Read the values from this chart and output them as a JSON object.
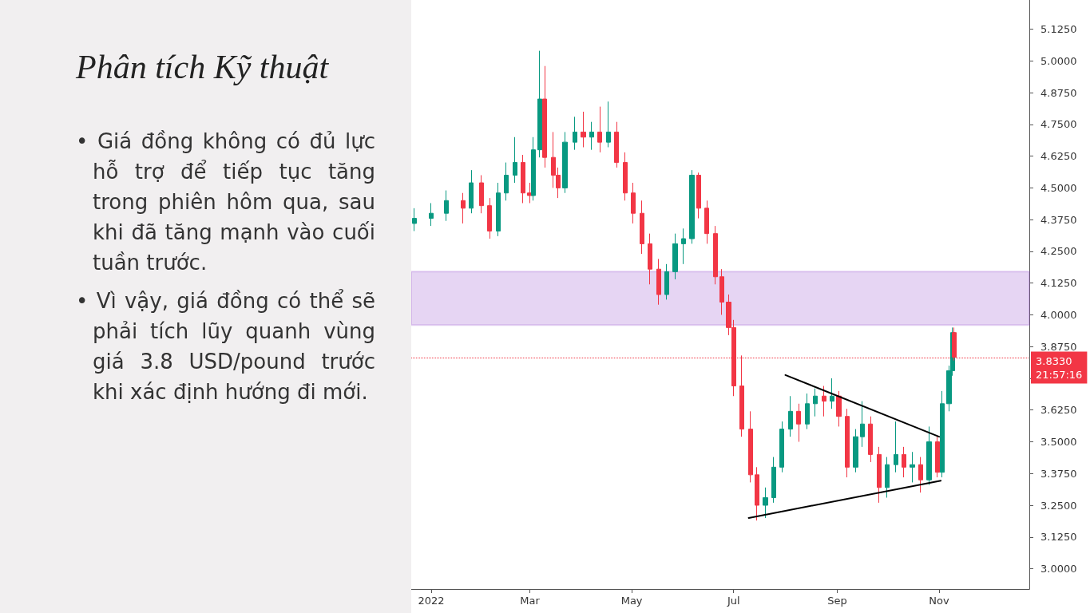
{
  "chart_data": {
    "type": "candlestick",
    "title": "Phân tích Kỹ thuật",
    "annotations": [
      "• Giá đồng không có đủ lực hỗ trợ để tiếp tục tăng trong phiên hôm qua, sau khi đã tăng mạnh vào cuối tuần trước.",
      "• Vì vậy, giá đồng có thể sẽ phải tích lũy quanh vùng giá 3.8 USD/pound trước khi xác định hướng đi mới."
    ],
    "x": [
      "2021-12-22",
      "2022-01-01",
      "2022-01-10",
      "2022-01-20",
      "2022-01-25",
      "2022-01-31",
      "2022-02-05",
      "2022-02-10",
      "2022-02-15",
      "2022-02-20",
      "2022-02-25",
      "2022-03-01",
      "2022-03-03",
      "2022-03-07",
      "2022-03-10",
      "2022-03-15",
      "2022-03-18",
      "2022-03-22",
      "2022-03-28",
      "2022-04-02",
      "2022-04-07",
      "2022-04-12",
      "2022-04-17",
      "2022-04-22",
      "2022-04-27",
      "2022-05-02",
      "2022-05-07",
      "2022-05-12",
      "2022-05-17",
      "2022-05-22",
      "2022-05-27",
      "2022-06-01",
      "2022-06-06",
      "2022-06-10",
      "2022-06-15",
      "2022-06-20",
      "2022-06-24",
      "2022-06-28",
      "2022-07-01",
      "2022-07-06",
      "2022-07-11",
      "2022-07-15",
      "2022-07-20",
      "2022-07-25",
      "2022-07-30",
      "2022-08-04",
      "2022-08-09",
      "2022-08-14",
      "2022-08-19",
      "2022-08-24",
      "2022-08-29",
      "2022-09-02",
      "2022-09-07",
      "2022-09-12",
      "2022-09-16",
      "2022-09-21",
      "2022-09-26",
      "2022-10-01",
      "2022-10-06",
      "2022-10-11",
      "2022-10-16",
      "2022-10-21",
      "2022-10-26",
      "2022-10-31",
      "2022-11-03",
      "2022-11-07",
      "2022-11-09",
      "2022-11-10"
    ],
    "ohlc": [
      [
        4.36,
        4.42,
        4.33,
        4.38
      ],
      [
        4.38,
        4.44,
        4.35,
        4.4
      ],
      [
        4.4,
        4.49,
        4.37,
        4.45
      ],
      [
        4.45,
        4.48,
        4.36,
        4.42
      ],
      [
        4.42,
        4.57,
        4.4,
        4.52
      ],
      [
        4.52,
        4.55,
        4.4,
        4.43
      ],
      [
        4.43,
        4.46,
        4.3,
        4.33
      ],
      [
        4.33,
        4.52,
        4.31,
        4.48
      ],
      [
        4.48,
        4.6,
        4.45,
        4.55
      ],
      [
        4.55,
        4.7,
        4.52,
        4.6
      ],
      [
        4.6,
        4.63,
        4.44,
        4.48
      ],
      [
        4.48,
        4.52,
        4.44,
        4.47
      ],
      [
        4.47,
        4.7,
        4.45,
        4.65
      ],
      [
        4.65,
        5.04,
        4.62,
        4.85
      ],
      [
        4.85,
        4.98,
        4.58,
        4.62
      ],
      [
        4.62,
        4.72,
        4.5,
        4.55
      ],
      [
        4.55,
        4.58,
        4.46,
        4.5
      ],
      [
        4.5,
        4.72,
        4.48,
        4.68
      ],
      [
        4.68,
        4.78,
        4.65,
        4.72
      ],
      [
        4.72,
        4.8,
        4.66,
        4.7
      ],
      [
        4.7,
        4.76,
        4.65,
        4.72
      ],
      [
        4.72,
        4.82,
        4.64,
        4.68
      ],
      [
        4.68,
        4.84,
        4.66,
        4.72
      ],
      [
        4.72,
        4.76,
        4.58,
        4.6
      ],
      [
        4.6,
        4.64,
        4.45,
        4.48
      ],
      [
        4.48,
        4.52,
        4.36,
        4.4
      ],
      [
        4.4,
        4.45,
        4.24,
        4.28
      ],
      [
        4.28,
        4.32,
        4.12,
        4.18
      ],
      [
        4.18,
        4.22,
        4.04,
        4.08
      ],
      [
        4.08,
        4.2,
        4.06,
        4.17
      ],
      [
        4.17,
        4.32,
        4.14,
        4.28
      ],
      [
        4.28,
        4.34,
        4.2,
        4.3
      ],
      [
        4.3,
        4.57,
        4.28,
        4.55
      ],
      [
        4.55,
        4.56,
        4.38,
        4.42
      ],
      [
        4.42,
        4.45,
        4.28,
        4.32
      ],
      [
        4.32,
        4.35,
        4.12,
        4.15
      ],
      [
        4.15,
        4.18,
        4.0,
        4.05
      ],
      [
        4.05,
        4.08,
        3.92,
        3.95
      ],
      [
        3.95,
        3.98,
        3.68,
        3.72
      ],
      [
        3.72,
        3.84,
        3.52,
        3.55
      ],
      [
        3.55,
        3.62,
        3.34,
        3.37
      ],
      [
        3.37,
        3.4,
        3.19,
        3.25
      ],
      [
        3.25,
        3.32,
        3.2,
        3.28
      ],
      [
        3.28,
        3.44,
        3.26,
        3.4
      ],
      [
        3.4,
        3.58,
        3.38,
        3.55
      ],
      [
        3.55,
        3.68,
        3.52,
        3.62
      ],
      [
        3.62,
        3.65,
        3.5,
        3.57
      ],
      [
        3.57,
        3.69,
        3.55,
        3.65
      ],
      [
        3.65,
        3.71,
        3.6,
        3.68
      ],
      [
        3.68,
        3.72,
        3.6,
        3.66
      ],
      [
        3.66,
        3.75,
        3.63,
        3.68
      ],
      [
        3.68,
        3.7,
        3.56,
        3.6
      ],
      [
        3.6,
        3.63,
        3.36,
        3.4
      ],
      [
        3.4,
        3.55,
        3.38,
        3.52
      ],
      [
        3.52,
        3.66,
        3.48,
        3.57
      ],
      [
        3.57,
        3.6,
        3.42,
        3.45
      ],
      [
        3.45,
        3.48,
        3.26,
        3.32
      ],
      [
        3.32,
        3.44,
        3.28,
        3.41
      ],
      [
        3.41,
        3.58,
        3.38,
        3.45
      ],
      [
        3.45,
        3.48,
        3.36,
        3.4
      ],
      [
        3.4,
        3.46,
        3.34,
        3.41
      ],
      [
        3.41,
        3.44,
        3.3,
        3.35
      ],
      [
        3.35,
        3.56,
        3.33,
        3.5
      ],
      [
        3.5,
        3.52,
        3.36,
        3.38
      ],
      [
        3.38,
        3.7,
        3.36,
        3.65
      ],
      [
        3.65,
        3.8,
        3.62,
        3.78
      ],
      [
        3.78,
        3.95,
        3.76,
        3.93
      ],
      [
        3.93,
        3.95,
        3.82,
        3.833
      ]
    ],
    "series": [
      {
        "type": "line",
        "color": "#000000",
        "x": [
          "2022-08-01",
          "2022-11-01"
        ],
        "values": [
          3.763,
          3.52
        ]
      },
      {
        "type": "line",
        "color": "#000000",
        "x": [
          "2022-07-10",
          "2022-11-02"
        ],
        "values": [
          3.2,
          3.347
        ]
      }
    ],
    "bands": [
      {
        "axis": "y",
        "from": 3.96,
        "to": 4.17,
        "color": "#9b59d0"
      }
    ],
    "ref_lines": [
      {
        "axis": "y",
        "value": 3.833,
        "label": "3.8330\n21:57:16",
        "color": "#f23645",
        "line_style": "dotted"
      }
    ],
    "xlim": [
      "2021-12-20",
      "2022-12-25"
    ],
    "xticks": [
      {
        "value": "2022-01-01",
        "label": "2022"
      },
      {
        "value": "2022-03-01",
        "label": "Mar"
      },
      {
        "value": "2022-05-01",
        "label": "May"
      },
      {
        "value": "2022-07-01",
        "label": "Jul"
      },
      {
        "value": "2022-09-01",
        "label": "Sep"
      },
      {
        "value": "2022-11-01",
        "label": "Nov"
      }
    ],
    "ylim": [
      2.92,
      5.24
    ],
    "yticks": [
      {
        "value": 3,
        "label": "3.0000"
      },
      {
        "value": 3.125,
        "label": "3.1250"
      },
      {
        "value": 3.25,
        "label": "3.2500"
      },
      {
        "value": 3.375,
        "label": "3.3750"
      },
      {
        "value": 3.5,
        "label": "3.5000"
      },
      {
        "value": 3.625,
        "label": "3.6250"
      },
      {
        "value": 3.75,
        "label": null
      },
      {
        "value": 3.875,
        "label": "3.8750"
      },
      {
        "value": 4,
        "label": "4.0000"
      },
      {
        "value": 4.125,
        "label": "4.1250"
      },
      {
        "value": 4.25,
        "label": "4.2500"
      },
      {
        "value": 4.375,
        "label": "4.3750"
      },
      {
        "value": 4.5,
        "label": "4.5000"
      },
      {
        "value": 4.625,
        "label": "4.6250"
      },
      {
        "value": 4.75,
        "label": "4.7500"
      },
      {
        "value": 4.875,
        "label": "4.8750"
      },
      {
        "value": 5,
        "label": "5.0000"
      },
      {
        "value": 5.125,
        "label": "5.1250"
      }
    ],
    "grid": false,
    "line_style": "solid",
    "marker": "none"
  }
}
